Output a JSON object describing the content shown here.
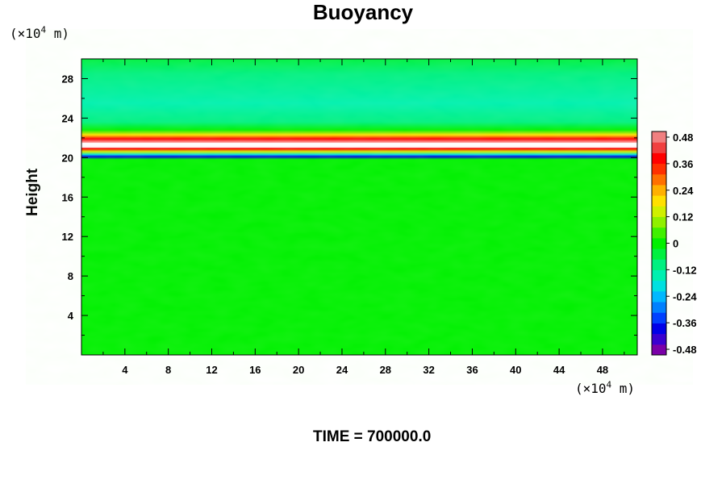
{
  "chart_data": {
    "type": "heatmap",
    "title": "Buoyancy",
    "xlabel": "",
    "ylabel": "Height",
    "x_unit_prefix": "(×10",
    "x_unit_exp": "4",
    "x_unit_suffix": " m)",
    "y_unit_prefix": "(×10",
    "y_unit_exp": "4",
    "y_unit_suffix": " m)",
    "xlim": [
      0,
      51.2
    ],
    "ylim": [
      0,
      30
    ],
    "xticks": [
      4,
      8,
      12,
      16,
      20,
      24,
      28,
      32,
      36,
      40,
      44,
      48
    ],
    "yticks": [
      4,
      8,
      12,
      16,
      20,
      24,
      28
    ],
    "colorbar": {
      "min": -0.48,
      "max": 0.48,
      "ticks": [
        "0.48",
        "0.36",
        "0.24",
        "0.12",
        "0",
        "-0.12",
        "-0.24",
        "-0.36",
        "-0.48"
      ],
      "colors": [
        "#7a00a8",
        "#3a00d0",
        "#0000e8",
        "#0040ff",
        "#0080ff",
        "#00b8ff",
        "#00e0e0",
        "#00f0b0",
        "#00f080",
        "#00f040",
        "#00f000",
        "#40f000",
        "#90f000",
        "#d0f000",
        "#ffe000",
        "#ffb000",
        "#ff7000",
        "#ff3000",
        "#ff0000",
        "#f04040",
        "#f08080"
      ]
    },
    "field_profile": [
      {
        "height": 0,
        "value": 0.0
      },
      {
        "height": 19.8,
        "value": 0.0
      },
      {
        "height": 20.1,
        "value": -0.36
      },
      {
        "height": 20.3,
        "value": -0.2
      },
      {
        "height": 20.6,
        "value": 0.12
      },
      {
        "height": 20.9,
        "value": 0.36
      },
      {
        "height": 21.3,
        "value": 0.6
      },
      {
        "height": 21.9,
        "value": 0.36
      },
      {
        "height": 22.3,
        "value": 0.2
      },
      {
        "height": 22.8,
        "value": 0.0
      },
      {
        "height": 23.6,
        "value": -0.1
      },
      {
        "height": 25.5,
        "value": -0.12
      },
      {
        "height": 28.5,
        "value": -0.08
      },
      {
        "height": 30,
        "value": -0.06
      }
    ],
    "grid": false,
    "legend": "colorbar-right"
  },
  "footer": {
    "time_label": "TIME = 700000.0"
  }
}
